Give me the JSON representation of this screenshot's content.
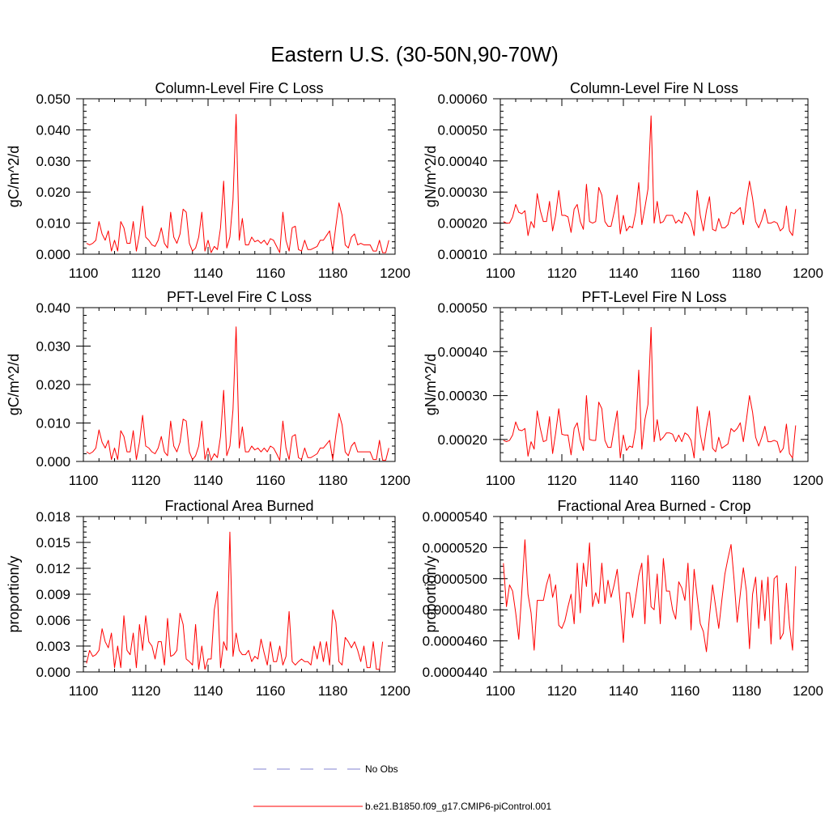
{
  "figure": {
    "title": "Eastern U.S. (30-50N,90-70W)"
  },
  "legend": [
    {
      "label": "No Obs",
      "color": "#8080d0",
      "style": "dashed"
    },
    {
      "label": "b.e21.B1850.f09_g17.CMIP6-piControl.001",
      "color": "#ff0000",
      "style": "solid"
    }
  ],
  "chart_data": [
    {
      "type": "line",
      "title": "Column-Level Fire C Loss",
      "ylabel": "gC/m^2/d",
      "xlim": [
        1100,
        1200
      ],
      "ylim": [
        0,
        0.05
      ],
      "xticks": [
        1100,
        1120,
        1140,
        1160,
        1180,
        1200
      ],
      "xtick_labels": [
        "1100",
        "1120",
        "1140",
        "1160",
        "1180",
        "1200"
      ],
      "yticks": [
        0,
        0.01,
        0.02,
        0.03,
        0.04,
        0.05
      ],
      "ytick_labels": [
        "0.000",
        "0.010",
        "0.020",
        "0.030",
        "0.040",
        "0.050"
      ],
      "series": [
        {
          "name": "b.e21.B1850.f09_g17.CMIP6-piControl.001",
          "color": "#ff0000",
          "x_start": 1101,
          "values": [
            0.0035,
            0.003,
            0.0035,
            0.0045,
            0.0105,
            0.0065,
            0.0045,
            0.0075,
            0.001,
            0.0045,
            0.001,
            0.0105,
            0.0085,
            0.0035,
            0.0035,
            0.0105,
            0.001,
            0.0065,
            0.0155,
            0.0055,
            0.0045,
            0.003,
            0.0025,
            0.0045,
            0.0085,
            0.0035,
            0.002,
            0.0135,
            0.0055,
            0.0035,
            0.0065,
            0.0145,
            0.0135,
            0.0035,
            0.001,
            0.002,
            0.0055,
            0.0135,
            0.001,
            0.0045,
            0.0005,
            0.0025,
            0.0015,
            0.0085,
            0.0235,
            0.002,
            0.0055,
            0.0175,
            0.045,
            0.0045,
            0.0115,
            0.003,
            0.003,
            0.0055,
            0.004,
            0.0045,
            0.0035,
            0.0045,
            0.003,
            0.005,
            0.0045,
            0.0025,
            0.0005,
            0.0135,
            0.0045,
            0.001,
            0.0085,
            0.009,
            0.0015,
            0.001,
            0.0045,
            0.0015,
            0.0015,
            0.002,
            0.0025,
            0.0045,
            0.0045,
            0.006,
            0.0075,
            0.001,
            0.009,
            0.0165,
            0.0125,
            0.003,
            0.002,
            0.0055,
            0.0065,
            0.003,
            0.0035,
            0.003,
            0.003,
            0.003,
            0.001,
            0.001,
            0.0045,
            0.0005,
            0.0005,
            0.0045
          ]
        }
      ]
    },
    {
      "type": "line",
      "title": "Column-Level Fire N Loss",
      "ylabel": "gN/m^2/d",
      "xlim": [
        1100,
        1200
      ],
      "ylim": [
        0.0001,
        0.0006
      ],
      "xticks": [
        1100,
        1120,
        1140,
        1160,
        1180,
        1200
      ],
      "xtick_labels": [
        "1100",
        "1120",
        "1140",
        "1160",
        "1180",
        "1200"
      ],
      "yticks": [
        0.0001,
        0.0002,
        0.0003,
        0.0004,
        0.0005,
        0.0006
      ],
      "ytick_labels": [
        "0.00010",
        "0.00020",
        "0.00030",
        "0.00040",
        "0.00050",
        "0.00060"
      ],
      "series": [
        {
          "name": "b.e21.B1850.f09_g17.CMIP6-piControl.001",
          "color": "#ff0000",
          "x_start": 1101,
          "values": [
            0.000205,
            0.0002,
            0.0002,
            0.00022,
            0.00026,
            0.000235,
            0.00023,
            0.00024,
            0.00016,
            0.000205,
            0.000185,
            0.000295,
            0.00024,
            0.000205,
            0.000205,
            0.00027,
            0.000175,
            0.000225,
            0.000305,
            0.000225,
            0.000225,
            0.00022,
            0.00017,
            0.000245,
            0.00026,
            0.000205,
            0.00018,
            0.000325,
            0.000205,
            0.0002,
            0.000205,
            0.000315,
            0.00029,
            0.000205,
            0.00019,
            0.00019,
            0.000235,
            0.00029,
            0.000165,
            0.000225,
            0.000175,
            0.00019,
            0.000185,
            0.000235,
            0.00033,
            0.000195,
            0.00025,
            0.00031,
            0.000545,
            0.0002,
            0.00027,
            0.0002,
            0.000205,
            0.000225,
            0.000225,
            0.000225,
            0.0002,
            0.00021,
            0.0002,
            0.000235,
            0.000225,
            0.000205,
            0.00016,
            0.000305,
            0.000225,
            0.000175,
            0.00024,
            0.000285,
            0.00018,
            0.000175,
            0.000215,
            0.000185,
            0.000185,
            0.000195,
            0.000235,
            0.00023,
            0.00024,
            0.00025,
            0.000195,
            0.00027,
            0.000335,
            0.00028,
            0.000205,
            0.000185,
            0.00021,
            0.000245,
            0.0002,
            0.0002,
            0.000205,
            0.0002,
            0.000175,
            0.000185,
            0.000255,
            0.000175,
            0.00016,
            0.000245
          ]
        }
      ]
    },
    {
      "type": "line",
      "title": "PFT-Level Fire C Loss",
      "ylabel": "gC/m^2/d",
      "xlim": [
        1100,
        1200
      ],
      "ylim": [
        0,
        0.04
      ],
      "xticks": [
        1100,
        1120,
        1140,
        1160,
        1180,
        1200
      ],
      "xtick_labels": [
        "1100",
        "1120",
        "1140",
        "1160",
        "1180",
        "1200"
      ],
      "yticks": [
        0,
        0.01,
        0.02,
        0.03,
        0.04
      ],
      "ytick_labels": [
        "0.000",
        "0.010",
        "0.020",
        "0.030",
        "0.040"
      ],
      "series": [
        {
          "name": "b.e21.B1850.f09_g17.CMIP6-piControl.001",
          "color": "#ff0000",
          "x_start": 1101,
          "values": [
            0.0025,
            0.002,
            0.0025,
            0.0035,
            0.0082,
            0.005,
            0.0035,
            0.0055,
            0.0005,
            0.0035,
            0.0005,
            0.008,
            0.0065,
            0.0025,
            0.0025,
            0.008,
            0.0005,
            0.005,
            0.012,
            0.004,
            0.0035,
            0.0025,
            0.002,
            0.0035,
            0.0065,
            0.0025,
            0.0015,
            0.0105,
            0.004,
            0.0025,
            0.005,
            0.011,
            0.0105,
            0.0025,
            0.0005,
            0.0015,
            0.004,
            0.0105,
            0.0005,
            0.0035,
            0.0003,
            0.002,
            0.001,
            0.0065,
            0.0185,
            0.0015,
            0.004,
            0.0135,
            0.035,
            0.0035,
            0.009,
            0.0025,
            0.0025,
            0.004,
            0.003,
            0.0035,
            0.0025,
            0.0035,
            0.0025,
            0.004,
            0.0035,
            0.002,
            0.0003,
            0.0105,
            0.0035,
            0.0005,
            0.0065,
            0.007,
            0.001,
            0.0005,
            0.0035,
            0.001,
            0.001,
            0.0015,
            0.002,
            0.0035,
            0.0035,
            0.0045,
            0.0055,
            0.0005,
            0.007,
            0.0125,
            0.0095,
            0.0025,
            0.0015,
            0.004,
            0.005,
            0.0025,
            0.0025,
            0.0025,
            0.0025,
            0.0025,
            0.0005,
            0.0005,
            0.0055,
            0.0003,
            0.0003,
            0.0035
          ]
        }
      ]
    },
    {
      "type": "line",
      "title": "PFT-Level Fire N Loss",
      "ylabel": "gN/m^2/d",
      "xlim": [
        1100,
        1200
      ],
      "ylim": [
        0.00015,
        0.0005
      ],
      "xticks": [
        1100,
        1120,
        1140,
        1160,
        1180,
        1200
      ],
      "xtick_labels": [
        "1100",
        "1120",
        "1140",
        "1160",
        "1180",
        "1200"
      ],
      "yticks": [
        0.0002,
        0.0003,
        0.0004,
        0.0005
      ],
      "ytick_labels": [
        "0.00020",
        "0.00030",
        "0.00040",
        "0.00050"
      ],
      "series": [
        {
          "name": "b.e21.B1850.f09_g17.CMIP6-piControl.001",
          "color": "#ff0000",
          "x_start": 1101,
          "values": [
            0.000198,
            0.000195,
            0.000198,
            0.00021,
            0.00024,
            0.000222,
            0.00022,
            0.000225,
            0.000162,
            0.000195,
            0.000178,
            0.000265,
            0.000225,
            0.000195,
            0.000198,
            0.000252,
            0.000168,
            0.000215,
            0.00027,
            0.000212,
            0.00021,
            0.00021,
            0.000165,
            0.000225,
            0.000238,
            0.000198,
            0.000175,
            0.0003,
            0.0002,
            0.000198,
            0.000198,
            0.000285,
            0.00027,
            0.000198,
            0.000182,
            0.000182,
            0.000225,
            0.000265,
            0.000158,
            0.00021,
            0.000175,
            0.000185,
            0.000182,
            0.000225,
            0.000358,
            0.000178,
            0.000245,
            0.00028,
            0.000455,
            0.000195,
            0.000245,
            0.000198,
            0.000205,
            0.000215,
            0.000215,
            0.000212,
            0.000195,
            0.00021,
            0.000195,
            0.000215,
            0.00021,
            0.000198,
            0.000158,
            0.000275,
            0.000212,
            0.000175,
            0.000225,
            0.000265,
            0.00018,
            0.000172,
            0.000205,
            0.00018,
            0.000185,
            0.00019,
            0.000225,
            0.000218,
            0.000225,
            0.000238,
            0.000195,
            0.000245,
            0.0003,
            0.000262,
            0.000205,
            0.000185,
            0.000205,
            0.00023,
            0.000195,
            0.000195,
            0.000198,
            0.000195,
            0.00017,
            0.00018,
            0.000235,
            0.000168,
            0.000158,
            0.000232
          ]
        }
      ]
    },
    {
      "type": "line",
      "title": "Fractional Area Burned",
      "ylabel": "proportion/y",
      "xlim": [
        1100,
        1200
      ],
      "ylim": [
        0,
        0.018
      ],
      "xticks": [
        1100,
        1120,
        1140,
        1160,
        1180,
        1200
      ],
      "xtick_labels": [
        "1100",
        "1120",
        "1140",
        "1160",
        "1180",
        "1200"
      ],
      "yticks": [
        0,
        0.003,
        0.006,
        0.009,
        0.012,
        0.015,
        0.018
      ],
      "ytick_labels": [
        "0.000",
        "0.003",
        "0.006",
        "0.009",
        "0.012",
        "0.015",
        "0.018"
      ],
      "series": [
        {
          "name": "b.e21.B1850.f09_g17.CMIP6-piControl.001",
          "color": "#ff0000",
          "x_start": 1101,
          "values": [
            0.001,
            0.0025,
            0.0018,
            0.002,
            0.0025,
            0.005,
            0.0035,
            0.0028,
            0.0045,
            0.0005,
            0.003,
            0.0005,
            0.0065,
            0.0025,
            0.002,
            0.0045,
            0.0005,
            0.0055,
            0.0025,
            0.0065,
            0.0035,
            0.003,
            0.0015,
            0.0035,
            0.0035,
            0.0008,
            0.0062,
            0.0018,
            0.002,
            0.0025,
            0.0068,
            0.0055,
            0.0015,
            0.0012,
            0.0008,
            0.0055,
            0.0003,
            0.003,
            0.0003,
            0.0015,
            0.0015,
            0.0072,
            0.0093,
            0.0005,
            0.0035,
            0.0025,
            0.0162,
            0.0018,
            0.0045,
            0.0025,
            0.002,
            0.002,
            0.0025,
            0.0012,
            0.0018,
            0.0015,
            0.0038,
            0.0022,
            0.0008,
            0.0035,
            0.0012,
            0.0012,
            0.003,
            0.0008,
            0.0018,
            0.007,
            0.0012,
            0.0008,
            0.0012,
            0.0015,
            0.0012,
            0.0012,
            0.0008,
            0.003,
            0.0015,
            0.0035,
            0.0012,
            0.0035,
            0.0008,
            0.0072,
            0.0058,
            0.0012,
            0.0008,
            0.004,
            0.0035,
            0.0028,
            0.0035,
            0.0025,
            0.0012,
            0.003,
            0.0005,
            0.0005,
            0.0035,
            0.0003,
            0.0003,
            0.0035
          ]
        }
      ]
    },
    {
      "type": "line",
      "title": "Fractional Area Burned - Crop",
      "ylabel": "proportion/y",
      "xlim": [
        1100,
        1200
      ],
      "ylim": [
        4.4e-05,
        5.4e-05
      ],
      "xticks": [
        1100,
        1120,
        1140,
        1160,
        1180,
        1200
      ],
      "xtick_labels": [
        "1100",
        "1120",
        "1140",
        "1160",
        "1180",
        "1200"
      ],
      "yticks": [
        4.4e-05,
        4.6e-05,
        4.8e-05,
        5e-05,
        5.2e-05,
        5.4e-05
      ],
      "ytick_labels": [
        "0.0000440",
        "0.0000460",
        "0.0000480",
        "0.0000500",
        "0.0000520",
        "0.0000540"
      ],
      "series": [
        {
          "name": "b.e21.B1850.f09_g17.CMIP6-piControl.001",
          "color": "#ff0000",
          "x_start": 1101,
          "values": [
            5.1e-05,
            4.82e-05,
            4.96e-05,
            4.92e-05,
            4.78e-05,
            4.61e-05,
            4.92e-05,
            5.25e-05,
            4.9e-05,
            4.78e-05,
            4.54e-05,
            4.86e-05,
            4.86e-05,
            4.86e-05,
            4.96e-05,
            5.03e-05,
            4.88e-05,
            4.96e-05,
            4.7e-05,
            4.68e-05,
            4.73e-05,
            4.82e-05,
            4.9e-05,
            4.71e-05,
            5.1e-05,
            4.78e-05,
            5.1e-05,
            4.95e-05,
            5.23e-05,
            4.82e-05,
            4.91e-05,
            4.84e-05,
            5.1e-05,
            4.84e-05,
            4.99e-05,
            4.88e-05,
            4.96e-05,
            5.06e-05,
            4.84e-05,
            4.59e-05,
            4.91e-05,
            4.91e-05,
            4.75e-05,
            4.88e-05,
            5.02e-05,
            5.1e-05,
            4.71e-05,
            5.15e-05,
            4.82e-05,
            4.8e-05,
            5.03e-05,
            4.71e-05,
            5.13e-05,
            4.92e-05,
            4.92e-05,
            4.8e-05,
            4.74e-05,
            4.98e-05,
            4.94e-05,
            4.86e-05,
            5.1e-05,
            4.67e-05,
            5.06e-05,
            4.88e-05,
            4.71e-05,
            4.66e-05,
            4.53e-05,
            4.76e-05,
            4.96e-05,
            4.82e-05,
            4.68e-05,
            4.86e-05,
            5.03e-05,
            5.13e-05,
            5.22e-05,
            4.99e-05,
            4.72e-05,
            4.9e-05,
            5.07e-05,
            4.92e-05,
            4.55e-05,
            4.9e-05,
            5.01e-05,
            4.68e-05,
            4.99e-05,
            4.73e-05,
            5.01e-05,
            4.58e-05,
            5e-05,
            5.02e-05,
            4.61e-05,
            4.65e-05,
            4.97e-05,
            4.7e-05,
            4.54e-05,
            5.08e-05
          ]
        }
      ]
    }
  ]
}
